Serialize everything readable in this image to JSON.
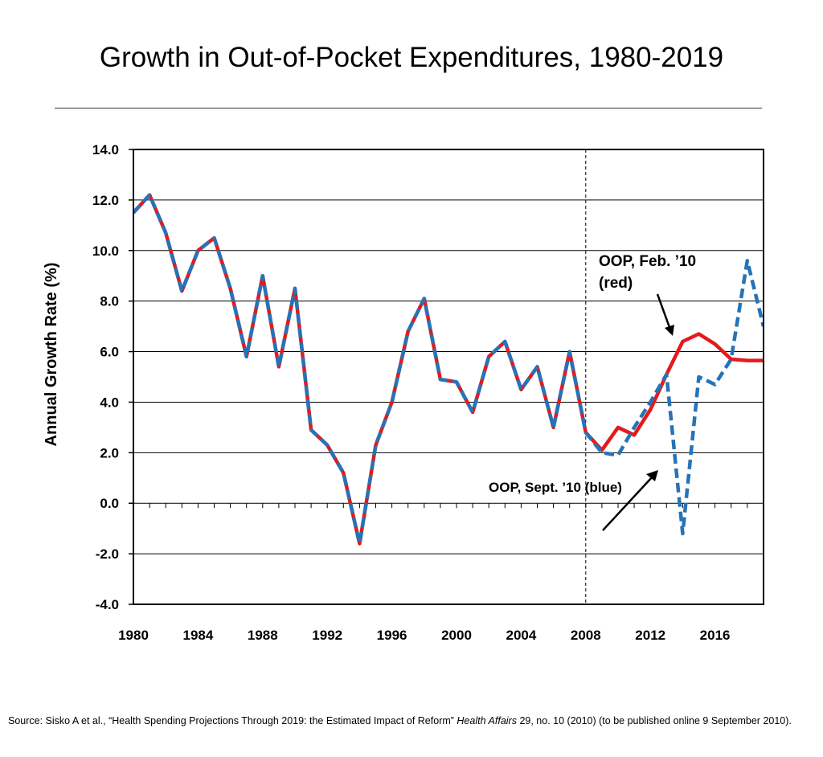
{
  "title": "Growth in Out-of-Pocket Expenditures, 1980-2019",
  "source": {
    "prefix": "Source: Sisko A et al., “Health Spending Projections Through 2019: the Estimated Impact of Reform” ",
    "journal": "Health Affairs",
    "suffix": " 29, no. 10 (2010) (to be published online 9 September 2010)."
  },
  "colors": {
    "red_series": "#e41a1c",
    "blue_series": "#2673b8",
    "grid": "#000000"
  },
  "chart_data": {
    "type": "line",
    "ylabel": "Annual Growth Rate (%)",
    "xlabel": "",
    "ylim": [
      -4,
      14
    ],
    "xlim": [
      1980,
      2019
    ],
    "y_ticks": [
      "-4.0",
      "-2.0",
      "0.0",
      "2.0",
      "4.0",
      "6.0",
      "8.0",
      "10.0",
      "12.0",
      "14.0"
    ],
    "x_ticks": [
      "1980",
      "1984",
      "1988",
      "1992",
      "1996",
      "2000",
      "2004",
      "2008",
      "2012",
      "2016"
    ],
    "grid": "horizontal",
    "divider_year": 2008,
    "series": [
      {
        "name": "OOP, Feb. ’10 (red)",
        "color": "#e41a1c",
        "style": "solid",
        "x": [
          1980,
          1981,
          1982,
          1983,
          1984,
          1985,
          1986,
          1987,
          1988,
          1989,
          1990,
          1991,
          1992,
          1993,
          1994,
          1995,
          1996,
          1997,
          1998,
          1999,
          2000,
          2001,
          2002,
          2003,
          2004,
          2005,
          2006,
          2007,
          2008,
          2009,
          2010,
          2011,
          2012,
          2013,
          2014,
          2015,
          2016,
          2017,
          2018,
          2019
        ],
        "values": [
          11.5,
          12.2,
          10.7,
          8.4,
          10.0,
          10.5,
          8.5,
          5.8,
          9.0,
          5.4,
          8.5,
          2.9,
          2.3,
          1.2,
          -1.6,
          2.3,
          4.0,
          6.8,
          8.1,
          4.9,
          4.8,
          3.6,
          5.8,
          6.4,
          4.5,
          5.4,
          3.0,
          6.0,
          2.8,
          2.1,
          3.0,
          2.7,
          3.7,
          5.1,
          6.4,
          6.7,
          6.3,
          5.7,
          5.65,
          5.65
        ]
      },
      {
        "name": "OOP, Sept. ’10 (blue)",
        "color": "#2673b8",
        "style": "dashed",
        "x": [
          1980,
          1981,
          1982,
          1983,
          1984,
          1985,
          1986,
          1987,
          1988,
          1989,
          1990,
          1991,
          1992,
          1993,
          1994,
          1995,
          1996,
          1997,
          1998,
          1999,
          2000,
          2001,
          2002,
          2003,
          2004,
          2005,
          2006,
          2007,
          2008,
          2009,
          2010,
          2011,
          2012,
          2013,
          2014,
          2015,
          2016,
          2017,
          2018,
          2019
        ],
        "values": [
          11.5,
          12.2,
          10.7,
          8.4,
          10.0,
          10.5,
          8.5,
          5.8,
          9.0,
          5.4,
          8.5,
          2.9,
          2.3,
          1.2,
          -1.6,
          2.3,
          4.0,
          6.8,
          8.1,
          4.9,
          4.8,
          3.6,
          5.8,
          6.4,
          4.5,
          5.4,
          3.0,
          6.0,
          2.8,
          2.0,
          1.9,
          3.0,
          4.0,
          5.1,
          -1.2,
          5.0,
          4.7,
          5.7,
          9.6,
          7.0
        ]
      }
    ],
    "annotations": [
      {
        "text_lines": [
          "OOP, Feb. ’10",
          "(red)"
        ]
      },
      {
        "text": "OOP, Sept. ’10 (blue)"
      }
    ]
  }
}
